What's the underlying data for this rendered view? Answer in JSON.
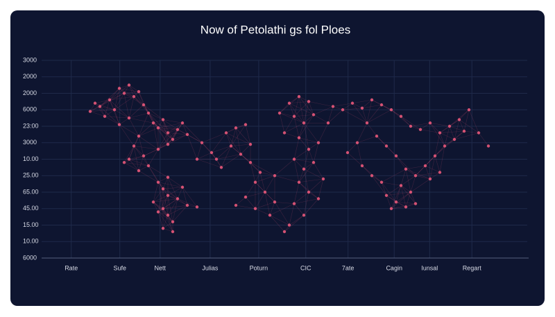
{
  "chart_data": {
    "type": "scatter",
    "title": "Now of Petolathi gs fol Ploes",
    "color": "#e8587a",
    "grid": true,
    "xlim": [
      0,
      100
    ],
    "ylim": [
      0,
      12
    ],
    "xticks": [
      {
        "value": 6.1,
        "label": "Rate"
      },
      {
        "value": 16.1,
        "label": "Sufe"
      },
      {
        "value": 24.4,
        "label": "Nett"
      },
      {
        "value": 34.7,
        "label": "Julias"
      },
      {
        "value": 44.7,
        "label": "Poturn"
      },
      {
        "value": 54.4,
        "label": "CIC"
      },
      {
        "value": 63.1,
        "label": "7ate"
      },
      {
        "value": 72.6,
        "label": "Cagin"
      },
      {
        "value": 79.9,
        "label": "Iunsal"
      },
      {
        "value": 88.6,
        "label": "Regart"
      }
    ],
    "yticks": [
      {
        "value": 0,
        "label": "6000"
      },
      {
        "value": 1,
        "label": "10.00"
      },
      {
        "value": 2,
        "label": "15.00"
      },
      {
        "value": 3,
        "label": "45.00"
      },
      {
        "value": 4,
        "label": "65.00"
      },
      {
        "value": 5,
        "label": "25.00"
      },
      {
        "value": 6,
        "label": "10.00"
      },
      {
        "value": 7,
        "label": "3000"
      },
      {
        "value": 8,
        "label": "23:00"
      },
      {
        "value": 9,
        "label": "6000"
      },
      {
        "value": 10,
        "label": "2000"
      },
      {
        "value": 11,
        "label": "2000"
      },
      {
        "value": 12,
        "label": "3000"
      }
    ],
    "x": [
      12,
      14,
      16,
      17,
      18,
      19,
      20,
      15,
      13,
      10,
      11,
      21,
      22,
      23,
      24,
      25,
      26,
      27,
      28,
      20,
      19,
      21,
      22,
      20,
      18,
      17,
      24,
      26,
      30,
      33,
      35,
      32,
      29,
      16,
      18,
      24,
      25,
      26,
      23,
      25,
      26,
      27,
      25,
      28,
      30,
      32,
      29,
      26,
      24,
      27,
      38,
      40,
      42,
      39,
      41,
      43,
      45,
      44,
      46,
      42,
      40,
      44,
      47,
      48,
      37,
      36,
      43,
      49,
      51,
      53,
      55,
      52,
      54,
      56,
      50,
      53,
      55,
      57,
      52,
      54,
      56,
      53,
      55,
      52,
      54,
      51,
      50,
      57,
      58,
      48,
      59,
      60,
      62,
      64,
      66,
      68,
      70,
      72,
      74,
      76,
      78,
      80,
      82,
      84,
      86,
      88,
      87,
      85,
      83,
      81,
      79,
      77,
      75,
      73,
      71,
      69,
      67,
      65,
      63,
      66,
      68,
      70,
      80,
      82,
      90,
      92,
      71,
      73,
      75,
      77,
      76,
      74,
      72
    ],
    "y": [
      9.2,
      9.6,
      10.3,
      10,
      10.5,
      9.8,
      10.1,
      9,
      8.6,
      8.9,
      9.4,
      9.3,
      8.8,
      8.2,
      7.9,
      8.4,
      7.6,
      7.2,
      7.8,
      7.4,
      6.8,
      6.2,
      5.6,
      5.3,
      6,
      5.8,
      6.6,
      6.9,
      7.5,
      7,
      6.4,
      6,
      8.2,
      8.1,
      8.5,
      4.6,
      4.2,
      3.8,
      3.4,
      3,
      2.6,
      2.2,
      1.8,
      3.6,
      3.2,
      3.1,
      4.3,
      4.9,
      2.8,
      1.6,
      7.6,
      7.9,
      8.1,
      6.8,
      6.3,
      5.8,
      5.2,
      4.6,
      4,
      3.7,
      3.2,
      3,
      2.6,
      3.4,
      5.5,
      6,
      6.9,
      8.8,
      9.4,
      9.8,
      9.5,
      8.6,
      8.2,
      8.7,
      7.6,
      7.3,
      6.6,
      7,
      6,
      5.4,
      5.8,
      4.6,
      4,
      3.3,
      2.6,
      2,
      1.6,
      3.6,
      4.8,
      5,
      8.2,
      9.2,
      9,
      9.4,
      9.1,
      9.6,
      9.3,
      9,
      8.6,
      8,
      7.8,
      8.2,
      7.6,
      8,
      8.4,
      9,
      7.7,
      7.2,
      6.8,
      6.2,
      5.6,
      5,
      5.4,
      6.2,
      6.8,
      7.4,
      8.2,
      7,
      6.4,
      5.6,
      5,
      4.6,
      4.8,
      5.2,
      7.6,
      6.8,
      3.8,
      3.4,
      3.1,
      3.3,
      4,
      4.4,
      3
    ]
  }
}
